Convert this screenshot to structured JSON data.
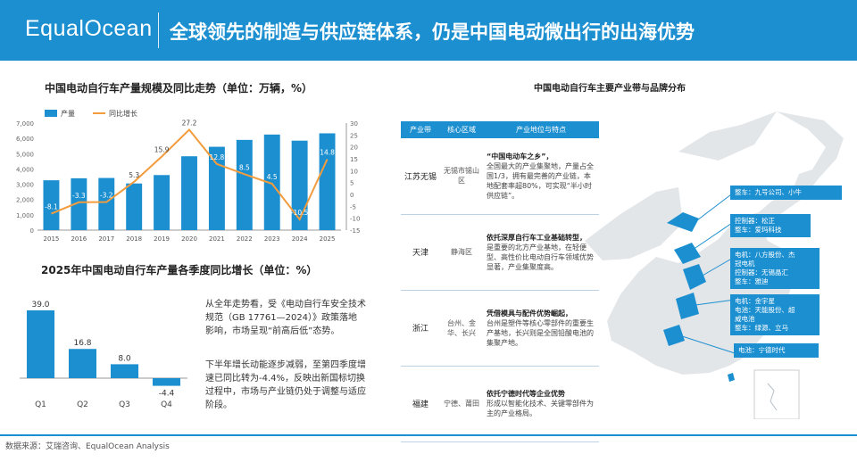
{
  "header": {
    "logo": "EqualOcean",
    "headline": "全球领先的制造与供应链体系，仍是中国电动微出行的出海优势"
  },
  "chart1_title": "中国电动自行车产量规模及同比走势（单位：万辆，%）",
  "chart2_title": "2025年中国电动自行车产量各季度同比增长（单位：%）",
  "commentary": [
    "从全年走势看，受《电动自行车安全技术规范（GB 17761—2024）》政策落地影响，市场呈现“前高后低”态势。",
    "下半年增长动能逐步减弱，至第四季度增速已同比转为-4.4%，反映出新国标切换过程中，市场与产业链仍处于调整与适应阶段。"
  ],
  "map_title": "中国电动自行车主要产业带与品牌分布",
  "table": {
    "headers": [
      "产业带",
      "核心区域",
      "产业地位与特点"
    ],
    "rows": [
      {
        "hub": "江苏无锡",
        "region": "无锡市锡山区",
        "feature_head": "“中国电动车之乡”，",
        "feature_body": "全国最大的产业集聚地，产量占全国1/3，拥有最完善的产业链，本地配套率超80%，可实现“半小时供应链”。"
      },
      {
        "hub": "天津",
        "region": "静海区",
        "feature_head": "依托深厚自行车工业基础转型，",
        "feature_body": "是重要的北方产业基地，在轻便型、高性价比电动自行车领域优势显著，产业集聚度高。"
      },
      {
        "hub": "浙江",
        "region": "台州、金华、长兴",
        "feature_head": "凭借模具与配件优势崛起，",
        "feature_body": "台州是塑件等核心零部件的重要生产基地，长兴则是全国铅酸电池的集聚产地。"
      },
      {
        "hub": "福建",
        "region": "宁德、莆田",
        "feature_head": "依托宁德时代等企业优势",
        "feature_body": "形成以智能化技术、关键零部件为主的产业格局。"
      }
    ]
  },
  "callouts": [
    {
      "lines": [
        "整车：九号公司、小牛"
      ]
    },
    {
      "lines": [
        "控制器：松正",
        "整车：爱玛科技"
      ]
    },
    {
      "lines": [
        "电机：八方股份、杰",
        "冠电机",
        "控制器：无锡晶汇",
        "整车：雅迪"
      ]
    },
    {
      "lines": [
        "电机：金宇星",
        "电池：天能股份、超",
        "威电池",
        "整车：绿源、立马"
      ]
    },
    {
      "lines": [
        "电池：宁德时代"
      ]
    }
  ],
  "source": "数据来源：艾瑞咨询、EqualOcean Analysis",
  "chart_data": [
    {
      "type": "bar",
      "categories": [
        "2015",
        "2016",
        "2017",
        "2018",
        "2019",
        "2020",
        "2021",
        "2022",
        "2023",
        "2024",
        "2025"
      ],
      "series": [
        {
          "name": "产量",
          "type": "bar",
          "axis": "left",
          "values": [
            3260,
            3390,
            3410,
            3050,
            3600,
            4830,
            5450,
            5900,
            6250,
            5850,
            6330
          ]
        },
        {
          "name": "同比增长",
          "type": "line",
          "axis": "right",
          "values": [
            -8.1,
            -3.3,
            -3.2,
            5.3,
            15.9,
            27.2,
            12.8,
            8.5,
            4.5,
            -10.5,
            14.8
          ]
        }
      ],
      "y_left_ticks": [
        "0",
        "1,000",
        "2,000",
        "3,000",
        "4,000",
        "5,000",
        "6,000",
        "7,000"
      ],
      "y_right_ticks": [
        "-15",
        "-10",
        "-5",
        "0",
        "5",
        "10",
        "15",
        "20",
        "25",
        "30"
      ],
      "ylim_left": [
        0,
        7000
      ],
      "ylim_right": [
        -15,
        30
      ],
      "legend": "top-left",
      "colors": {
        "bar": "#1c8fd0",
        "line": "#f39c3d"
      }
    },
    {
      "type": "bar",
      "categories": [
        "Q1",
        "Q2",
        "Q3",
        "Q4"
      ],
      "values": [
        39.0,
        16.8,
        8.0,
        -4.4
      ],
      "labels": [
        "39.0",
        "16.8",
        "8.0",
        "-4.4"
      ],
      "colors": {
        "bar": "#1c8fd0"
      }
    }
  ]
}
